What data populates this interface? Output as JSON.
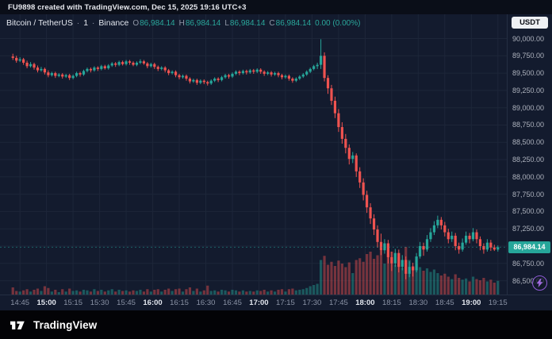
{
  "attribution": {
    "text": "FU9898 created with TradingView.com, Dec 15, 2025 19:16 UTC+3"
  },
  "header": {
    "symbol_title": "Bitcoin / TetherUS",
    "separator": "·",
    "interval": "1",
    "exchange": "Binance",
    "ohlc": {
      "o_label": "O",
      "o_value": "86,984.14",
      "h_label": "H",
      "h_value": "86,984.14",
      "l_label": "L",
      "l_value": "86,984.14",
      "c_label": "C",
      "c_value": "86,984.14",
      "change": "0.00 (0.00%)"
    }
  },
  "currency_button": {
    "label": "USDT"
  },
  "price_scale": {
    "labels": [
      "90,000.00",
      "89,750.00",
      "89,500.00",
      "89,250.00",
      "89,000.00",
      "88,750.00",
      "88,500.00",
      "88,250.00",
      "88,000.00",
      "87,750.00",
      "87,500.00",
      "87,250.00",
      "87,000.00",
      "86,750.00",
      "86,500.00"
    ],
    "current_price_label": "86,984.14"
  },
  "time_scale": {
    "ticks": [
      {
        "label": "14:45",
        "major": false
      },
      {
        "label": "15:00",
        "major": true
      },
      {
        "label": "15:15",
        "major": false
      },
      {
        "label": "15:30",
        "major": false
      },
      {
        "label": "15:45",
        "major": false
      },
      {
        "label": "16:00",
        "major": true
      },
      {
        "label": "16:15",
        "major": false
      },
      {
        "label": "16:30",
        "major": false
      },
      {
        "label": "16:45",
        "major": false
      },
      {
        "label": "17:00",
        "major": true
      },
      {
        "label": "17:15",
        "major": false
      },
      {
        "label": "17:30",
        "major": false
      },
      {
        "label": "17:45",
        "major": false
      },
      {
        "label": "18:00",
        "major": true
      },
      {
        "label": "18:15",
        "major": false
      },
      {
        "label": "18:30",
        "major": false
      },
      {
        "label": "18:45",
        "major": false
      },
      {
        "label": "19:00",
        "major": true
      },
      {
        "label": "19:15",
        "major": false
      }
    ]
  },
  "footer": {
    "brand": "TradingView"
  },
  "colors": {
    "up": "#26a69a",
    "down": "#ef5350",
    "grid": "#1d2639",
    "badge_bg": "#26a69a",
    "accent_purple": "#8f5bd6"
  },
  "chart_data": {
    "type": "candlestick+volume",
    "title": "Bitcoin / TetherUS · 1 · Binance",
    "start_time": "14:40",
    "end_time": "19:16",
    "interval_minutes": 2,
    "current_price": 86984.14,
    "price_axis": {
      "min": 86300,
      "max": 90350,
      "grid_min": 86500,
      "grid_max": 90000,
      "grid_step": 250
    },
    "candles_note": "arrays are [open, high, low, close, volume], approximate values read from chart",
    "candles": [
      [
        89740,
        89780,
        89690,
        89720,
        12
      ],
      [
        89720,
        89750,
        89650,
        89680,
        6
      ],
      [
        89680,
        89730,
        89660,
        89700,
        5
      ],
      [
        89700,
        89720,
        89620,
        89650,
        7
      ],
      [
        89650,
        89680,
        89570,
        89600,
        9
      ],
      [
        89600,
        89660,
        89580,
        89630,
        5
      ],
      [
        89630,
        89650,
        89550,
        89580,
        8
      ],
      [
        89580,
        89610,
        89510,
        89540,
        10
      ],
      [
        89540,
        89590,
        89520,
        89560,
        6
      ],
      [
        89560,
        89580,
        89480,
        89510,
        14
      ],
      [
        89510,
        89540,
        89440,
        89470,
        11
      ],
      [
        89470,
        89520,
        89450,
        89500,
        5
      ],
      [
        89500,
        89520,
        89430,
        89460,
        8
      ],
      [
        89460,
        89500,
        89440,
        89480,
        4
      ],
      [
        89480,
        89500,
        89420,
        89450,
        9
      ],
      [
        89450,
        89490,
        89430,
        89470,
        5
      ],
      [
        89470,
        89490,
        89400,
        89430,
        10
      ],
      [
        89430,
        89480,
        89410,
        89460,
        6
      ],
      [
        89460,
        89520,
        89440,
        89500,
        7
      ],
      [
        89500,
        89520,
        89450,
        89480,
        5
      ],
      [
        89480,
        89550,
        89460,
        89530,
        8
      ],
      [
        89530,
        89580,
        89510,
        89560,
        7
      ],
      [
        89560,
        89580,
        89510,
        89540,
        5
      ],
      [
        89540,
        89600,
        89520,
        89580,
        9
      ],
      [
        89580,
        89600,
        89530,
        89560,
        6
      ],
      [
        89560,
        89620,
        89540,
        89600,
        8
      ],
      [
        89600,
        89620,
        89550,
        89570,
        5
      ],
      [
        89570,
        89630,
        89550,
        89610,
        7
      ],
      [
        89610,
        89660,
        89590,
        89640,
        9
      ],
      [
        89640,
        89660,
        89590,
        89620,
        5
      ],
      [
        89620,
        89680,
        89600,
        89660,
        8
      ],
      [
        89660,
        89680,
        89610,
        89630,
        6
      ],
      [
        89630,
        89690,
        89610,
        89670,
        7
      ],
      [
        89670,
        89690,
        89620,
        89650,
        5
      ],
      [
        89650,
        89670,
        89600,
        89620,
        7
      ],
      [
        89620,
        89670,
        89600,
        89650,
        6
      ],
      [
        89650,
        89700,
        89630,
        89670,
        8
      ],
      [
        89670,
        89690,
        89620,
        89640,
        5
      ],
      [
        89640,
        89660,
        89570,
        89600,
        9
      ],
      [
        89600,
        89650,
        89580,
        89630,
        5
      ],
      [
        89630,
        89650,
        89560,
        89590,
        8
      ],
      [
        89590,
        89610,
        89530,
        89560,
        9
      ],
      [
        89560,
        89600,
        89540,
        89580,
        5
      ],
      [
        89580,
        89600,
        89510,
        89540,
        8
      ],
      [
        89540,
        89560,
        89470,
        89500,
        10
      ],
      [
        89500,
        89540,
        89480,
        89520,
        6
      ],
      [
        89520,
        89540,
        89440,
        89470,
        9
      ],
      [
        89470,
        89490,
        89410,
        89440,
        10
      ],
      [
        89440,
        89480,
        89420,
        89460,
        5
      ],
      [
        89460,
        89480,
        89390,
        89420,
        9
      ],
      [
        89420,
        89440,
        89350,
        89380,
        12
      ],
      [
        89380,
        89420,
        89360,
        89400,
        6
      ],
      [
        89400,
        89420,
        89330,
        89360,
        10
      ],
      [
        89360,
        89410,
        89340,
        89390,
        5
      ],
      [
        89390,
        89410,
        89340,
        89370,
        7
      ],
      [
        89370,
        89390,
        89320,
        89350,
        15
      ],
      [
        89350,
        89410,
        89330,
        89390,
        6
      ],
      [
        89390,
        89440,
        89370,
        89420,
        7
      ],
      [
        89420,
        89440,
        89370,
        89400,
        5
      ],
      [
        89400,
        89460,
        89380,
        89440,
        8
      ],
      [
        89440,
        89490,
        89420,
        89470,
        7
      ],
      [
        89470,
        89490,
        89420,
        89450,
        5
      ],
      [
        89450,
        89510,
        89430,
        89490,
        8
      ],
      [
        89490,
        89540,
        89470,
        89520,
        7
      ],
      [
        89520,
        89540,
        89470,
        89500,
        5
      ],
      [
        89500,
        89550,
        89480,
        89530,
        7
      ],
      [
        89530,
        89550,
        89480,
        89510,
        5
      ],
      [
        89510,
        89560,
        89490,
        89540,
        6
      ],
      [
        89540,
        89560,
        89490,
        89520,
        5
      ],
      [
        89520,
        89570,
        89500,
        89550,
        7
      ],
      [
        89550,
        89570,
        89490,
        89520,
        6
      ],
      [
        89520,
        89540,
        89460,
        89490,
        8
      ],
      [
        89490,
        89530,
        89470,
        89510,
        5
      ],
      [
        89510,
        89530,
        89450,
        89480,
        7
      ],
      [
        89480,
        89520,
        89460,
        89500,
        5
      ],
      [
        89500,
        89520,
        89440,
        89470,
        8
      ],
      [
        89470,
        89490,
        89410,
        89440,
        9
      ],
      [
        89440,
        89480,
        89420,
        89460,
        5
      ],
      [
        89460,
        89480,
        89390,
        89420,
        9
      ],
      [
        89420,
        89440,
        89360,
        89390,
        10
      ],
      [
        89390,
        89440,
        89370,
        89420,
        7
      ],
      [
        89420,
        89470,
        89400,
        89450,
        8
      ],
      [
        89450,
        89500,
        89430,
        89480,
        9
      ],
      [
        89480,
        89540,
        89460,
        89520,
        11
      ],
      [
        89520,
        89580,
        89500,
        89560,
        14
      ],
      [
        89560,
        89620,
        89540,
        89600,
        16
      ],
      [
        89600,
        89650,
        89560,
        89620,
        18
      ],
      [
        89620,
        89990,
        89560,
        89750,
        58
      ],
      [
        89750,
        89800,
        89380,
        89430,
        65
      ],
      [
        89430,
        89470,
        89200,
        89280,
        50
      ],
      [
        89280,
        89330,
        89040,
        89100,
        55
      ],
      [
        89100,
        89160,
        88850,
        88920,
        48
      ],
      [
        88920,
        88980,
        88650,
        88720,
        57
      ],
      [
        88720,
        88790,
        88480,
        88550,
        52
      ],
      [
        88550,
        88620,
        88340,
        88420,
        46
      ],
      [
        88420,
        88470,
        88180,
        88260,
        54
      ],
      [
        88260,
        88360,
        88200,
        88310,
        36
      ],
      [
        88310,
        88340,
        88000,
        88080,
        58
      ],
      [
        88080,
        88140,
        87840,
        87920,
        61
      ],
      [
        87920,
        87980,
        87660,
        87740,
        55
      ],
      [
        87740,
        87800,
        87480,
        87560,
        68
      ],
      [
        87560,
        87620,
        87320,
        87400,
        72
      ],
      [
        87400,
        87460,
        87160,
        87240,
        60
      ],
      [
        87240,
        87300,
        86980,
        87060,
        66
      ],
      [
        87060,
        87180,
        86870,
        86940,
        74
      ],
      [
        86940,
        87100,
        86890,
        87040,
        52
      ],
      [
        87040,
        87090,
        86750,
        86840,
        69
      ],
      [
        86840,
        86920,
        86640,
        86750,
        72
      ],
      [
        86750,
        86960,
        86700,
        86900,
        50
      ],
      [
        86900,
        86950,
        86620,
        86700,
        63
      ],
      [
        86700,
        86870,
        86650,
        86800,
        45
      ],
      [
        86800,
        86850,
        86520,
        86600,
        80
      ],
      [
        86600,
        86780,
        86550,
        86700,
        58
      ],
      [
        86700,
        86760,
        86560,
        86650,
        48
      ],
      [
        86650,
        86900,
        86620,
        86850,
        52
      ],
      [
        86850,
        87060,
        86820,
        87000,
        46
      ],
      [
        87000,
        87050,
        86860,
        86950,
        40
      ],
      [
        86950,
        87160,
        86920,
        87100,
        44
      ],
      [
        87100,
        87260,
        87060,
        87200,
        38
      ],
      [
        87200,
        87360,
        87160,
        87300,
        42
      ],
      [
        87300,
        87440,
        87260,
        87380,
        36
      ],
      [
        87380,
        87420,
        87240,
        87300,
        32
      ],
      [
        87300,
        87350,
        87140,
        87200,
        35
      ],
      [
        87200,
        87250,
        87040,
        87100,
        30
      ],
      [
        87100,
        87210,
        87060,
        87150,
        26
      ],
      [
        87150,
        87190,
        86940,
        87000,
        34
      ],
      [
        87000,
        87050,
        86890,
        86950,
        28
      ],
      [
        86950,
        87110,
        86920,
        87050,
        25
      ],
      [
        87050,
        87210,
        87020,
        87150,
        27
      ],
      [
        87150,
        87190,
        87040,
        87100,
        22
      ],
      [
        87100,
        87260,
        87070,
        87200,
        30
      ],
      [
        87200,
        87240,
        87040,
        87100,
        26
      ],
      [
        87100,
        87140,
        86940,
        87000,
        24
      ],
      [
        87000,
        87040,
        86890,
        86950,
        28
      ],
      [
        86950,
        87100,
        86920,
        87050,
        22
      ],
      [
        87050,
        87090,
        86930,
        86980,
        25
      ],
      [
        86980,
        87020,
        86930,
        86950,
        20
      ],
      [
        86950,
        87010,
        86920,
        86984.14,
        23
      ]
    ]
  }
}
